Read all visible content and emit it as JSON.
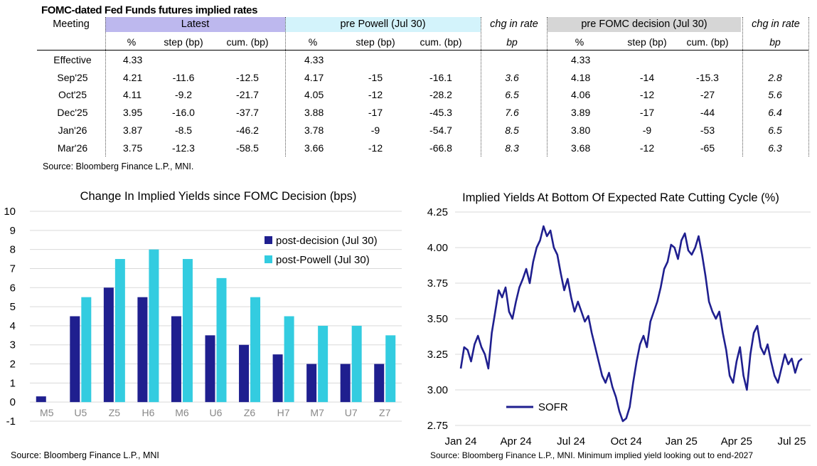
{
  "table": {
    "title": "FOMC-dated Fed Funds futures implied rates",
    "groups": {
      "meeting": "Meeting",
      "latest": "Latest",
      "pre_powell": "pre Powell (Jul 30)",
      "chg1": "chg in rate",
      "pre_fomc": "pre FOMC decision (Jul 30)",
      "chg2": "chg in rate"
    },
    "subheaders": [
      "%",
      "step (bp)",
      "cum. (bp)",
      "%",
      "step (bp)",
      "cum. (bp)",
      "bp",
      "%",
      "step (bp)",
      "cum. (bp)",
      "bp"
    ],
    "rows": [
      {
        "meeting": "Effective",
        "v": [
          "4.33",
          "",
          "",
          "4.33",
          "",
          "",
          "",
          "4.33",
          "",
          "",
          ""
        ]
      },
      {
        "meeting": "Sep'25",
        "v": [
          "4.21",
          "-11.6",
          "-12.5",
          "4.17",
          "-15",
          "-16.1",
          "3.6",
          "4.18",
          "-14",
          "-15.3",
          "2.8"
        ]
      },
      {
        "meeting": "Oct'25",
        "v": [
          "4.11",
          "-9.2",
          "-21.7",
          "4.05",
          "-12",
          "-28.2",
          "6.5",
          "4.06",
          "-12",
          "-27",
          "5.6"
        ]
      },
      {
        "meeting": "Dec'25",
        "v": [
          "3.95",
          "-16.0",
          "-37.7",
          "3.88",
          "-17",
          "-45.3",
          "7.6",
          "3.89",
          "-17",
          "-44",
          "6.4"
        ]
      },
      {
        "meeting": "Jan'26",
        "v": [
          "3.87",
          "-8.5",
          "-46.2",
          "3.78",
          "-9",
          "-54.7",
          "8.5",
          "3.80",
          "-9",
          "-53",
          "6.5"
        ]
      },
      {
        "meeting": "Mar'26",
        "v": [
          "3.75",
          "-12.3",
          "-58.5",
          "3.66",
          "-12",
          "-66.8",
          "8.3",
          "3.68",
          "-12",
          "-65",
          "6.3"
        ]
      }
    ],
    "source": "Source: Bloomberg Finance L.P., MNI."
  },
  "colors": {
    "navy": "#1f1f8f",
    "cyan": "#33cce0",
    "latest_bg": "#bdb8ee",
    "powell_bg": "#d3f3fb",
    "fomc_bg": "#d6d6d6",
    "line": "#1f1f8f"
  },
  "chart_data": [
    {
      "type": "bar",
      "title": "Change In Implied Yields since FOMC Decision (bps)",
      "categories": [
        "M5",
        "U5",
        "Z5",
        "H6",
        "M6",
        "U6",
        "Z6",
        "H7",
        "M7",
        "U7",
        "Z7"
      ],
      "series": [
        {
          "name": "post-decision (Jul 30)",
          "values": [
            0.3,
            4.5,
            6.0,
            5.5,
            4.5,
            3.5,
            3.0,
            2.5,
            2.0,
            2.0,
            2.0
          ]
        },
        {
          "name": "post-Powell (Jul 30)",
          "values": [
            0,
            5.5,
            7.5,
            8.0,
            7.5,
            6.5,
            5.5,
            4.5,
            4.0,
            4.0,
            3.5
          ]
        }
      ],
      "ylim": [
        -1,
        10
      ],
      "yticks": [
        "10",
        "9",
        "8",
        "7",
        "6",
        "5",
        "4",
        "3",
        "2",
        "1",
        "0",
        "-1"
      ],
      "xlabel": "",
      "ylabel": "",
      "legend": "top-right",
      "source": "Source: Bloomberg Finance L.P., MNI"
    },
    {
      "type": "line",
      "title": "Implied Yields At Bottom Of Expected Rate Cutting Cycle (%)",
      "series": [
        {
          "name": "SOFR",
          "points": [
            [
              0,
              3.15
            ],
            [
              0.05,
              3.3
            ],
            [
              0.1,
              3.28
            ],
            [
              0.15,
              3.2
            ],
            [
              0.2,
              3.32
            ],
            [
              0.25,
              3.38
            ],
            [
              0.3,
              3.3
            ],
            [
              0.35,
              3.25
            ],
            [
              0.4,
              3.15
            ],
            [
              0.45,
              3.4
            ],
            [
              0.5,
              3.55
            ],
            [
              0.55,
              3.7
            ],
            [
              0.6,
              3.65
            ],
            [
              0.65,
              3.72
            ],
            [
              0.7,
              3.55
            ],
            [
              0.75,
              3.5
            ],
            [
              0.8,
              3.62
            ],
            [
              0.85,
              3.72
            ],
            [
              0.9,
              3.78
            ],
            [
              0.95,
              3.85
            ],
            [
              1.0,
              3.75
            ],
            [
              1.05,
              3.9
            ],
            [
              1.1,
              4.0
            ],
            [
              1.15,
              4.05
            ],
            [
              1.2,
              4.15
            ],
            [
              1.25,
              4.08
            ],
            [
              1.3,
              4.12
            ],
            [
              1.35,
              4.0
            ],
            [
              1.4,
              3.95
            ],
            [
              1.45,
              3.82
            ],
            [
              1.5,
              3.7
            ],
            [
              1.55,
              3.78
            ],
            [
              1.6,
              3.65
            ],
            [
              1.65,
              3.55
            ],
            [
              1.7,
              3.62
            ],
            [
              1.75,
              3.55
            ],
            [
              1.8,
              3.48
            ],
            [
              1.85,
              3.52
            ],
            [
              1.9,
              3.4
            ],
            [
              1.95,
              3.3
            ],
            [
              2.0,
              3.2
            ],
            [
              2.05,
              3.1
            ],
            [
              2.1,
              3.05
            ],
            [
              2.15,
              3.12
            ],
            [
              2.2,
              3.02
            ],
            [
              2.25,
              2.95
            ],
            [
              2.3,
              2.85
            ],
            [
              2.35,
              2.78
            ],
            [
              2.4,
              2.8
            ],
            [
              2.45,
              2.88
            ],
            [
              2.5,
              3.05
            ],
            [
              2.55,
              3.2
            ],
            [
              2.6,
              3.32
            ],
            [
              2.65,
              3.38
            ],
            [
              2.7,
              3.3
            ],
            [
              2.75,
              3.48
            ],
            [
              2.8,
              3.55
            ],
            [
              2.85,
              3.62
            ],
            [
              2.9,
              3.72
            ],
            [
              2.95,
              3.85
            ],
            [
              3.0,
              3.9
            ],
            [
              3.05,
              4.02
            ],
            [
              3.1,
              4.0
            ],
            [
              3.15,
              3.92
            ],
            [
              3.2,
              4.05
            ],
            [
              3.25,
              4.1
            ],
            [
              3.3,
              3.98
            ],
            [
              3.35,
              3.95
            ],
            [
              3.4,
              4.0
            ],
            [
              3.45,
              4.08
            ],
            [
              3.5,
              3.95
            ],
            [
              3.55,
              3.8
            ],
            [
              3.6,
              3.62
            ],
            [
              3.65,
              3.55
            ],
            [
              3.7,
              3.5
            ],
            [
              3.75,
              3.55
            ],
            [
              3.8,
              3.4
            ],
            [
              3.85,
              3.28
            ],
            [
              3.9,
              3.1
            ],
            [
              3.95,
              3.05
            ],
            [
              4.0,
              3.2
            ],
            [
              4.05,
              3.3
            ],
            [
              4.1,
              3.1
            ],
            [
              4.15,
              3.0
            ],
            [
              4.2,
              3.25
            ],
            [
              4.25,
              3.4
            ],
            [
              4.3,
              3.45
            ],
            [
              4.35,
              3.3
            ],
            [
              4.4,
              3.25
            ],
            [
              4.45,
              3.32
            ],
            [
              4.5,
              3.2
            ],
            [
              4.55,
              3.1
            ],
            [
              4.6,
              3.05
            ],
            [
              4.65,
              3.15
            ],
            [
              4.7,
              3.25
            ],
            [
              4.75,
              3.18
            ],
            [
              4.8,
              3.22
            ],
            [
              4.85,
              3.12
            ],
            [
              4.9,
              3.2
            ],
            [
              4.95,
              3.22
            ]
          ]
        }
      ],
      "x_ticks": [
        "Jan 24",
        "Apr 24",
        "Jul 24",
        "Oct 24",
        "Jan 25",
        "Apr 25",
        "Jul 25"
      ],
      "ylim": [
        2.75,
        4.25
      ],
      "yticks": [
        "4.25",
        "4.00",
        "3.75",
        "3.50",
        "3.25",
        "3.00",
        "2.75"
      ],
      "legend": "bottom-left",
      "source": "Source: Bloomberg Finance L.P., MNI. Minimum implied yield looking out to end-2027"
    }
  ]
}
